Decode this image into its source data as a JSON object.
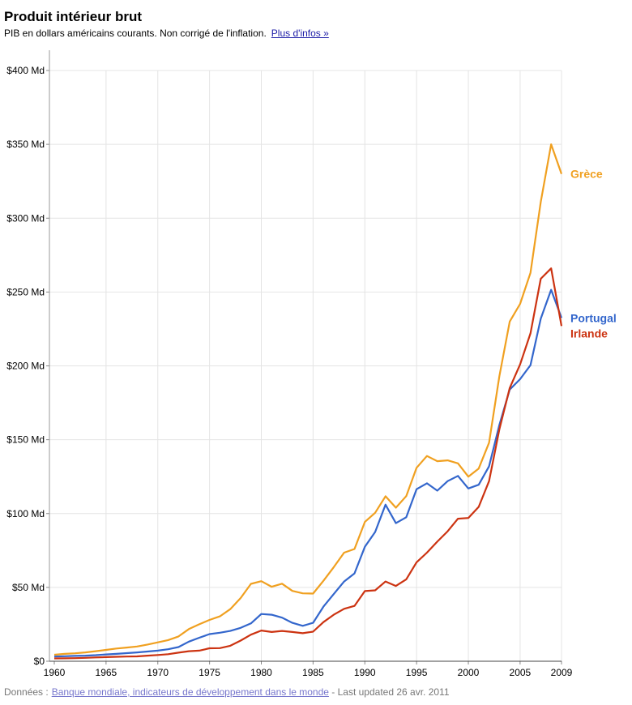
{
  "header": {
    "title": "Produit intérieur brut",
    "subtitle": "PIB en dollars américains courants. Non corrigé de l'inflation.",
    "more_info_link": "Plus d'infos »"
  },
  "footer": {
    "prefix": "Données :",
    "source_link": "Banque mondiale, indicateurs de développement dans le monde",
    "updated": "- Last updated 26 avr. 2011"
  },
  "chart_data": {
    "type": "line",
    "title": "Produit intérieur brut",
    "xlabel": "",
    "ylabel": "",
    "xlim": [
      1960,
      2009
    ],
    "ylim": [
      0,
      400
    ],
    "grid": true,
    "x_ticks": [
      1960,
      1965,
      1970,
      1975,
      1980,
      1985,
      1990,
      1995,
      2000,
      2005,
      2009
    ],
    "x_tick_labels": [
      "1960",
      "1965",
      "1970",
      "1975",
      "1980",
      "1985",
      "1990",
      "1995",
      "2000",
      "2005",
      "2009"
    ],
    "y_ticks": [
      0,
      50,
      100,
      150,
      200,
      250,
      300,
      350,
      400
    ],
    "y_tick_labels": [
      "$0",
      "$50 Md",
      "$100 Md",
      "$150 Md",
      "$200 Md",
      "$250 Md",
      "$300 Md",
      "$350 Md",
      "$400 Md"
    ],
    "x": [
      1960,
      1961,
      1962,
      1963,
      1964,
      1965,
      1966,
      1967,
      1968,
      1969,
      1970,
      1971,
      1972,
      1973,
      1974,
      1975,
      1976,
      1977,
      1978,
      1979,
      1980,
      1981,
      1982,
      1983,
      1984,
      1985,
      1986,
      1987,
      1988,
      1989,
      1990,
      1991,
      1992,
      1993,
      1994,
      1995,
      1996,
      1997,
      1998,
      1999,
      2000,
      2001,
      2002,
      2003,
      2004,
      2005,
      2006,
      2007,
      2008,
      2009
    ],
    "series": [
      {
        "name": "Grèce",
        "label": "Grèce",
        "color": "#f0a020",
        "values": [
          4.4,
          5.0,
          5.4,
          6.0,
          6.8,
          7.7,
          8.6,
          9.3,
          10.0,
          11.3,
          12.8,
          14.3,
          16.8,
          21.8,
          25.0,
          28.0,
          30.4,
          35.3,
          42.8,
          52.4,
          54.2,
          50.4,
          52.5,
          47.6,
          46.0,
          45.8,
          54.5,
          63.7,
          73.5,
          76.0,
          94.3,
          100.5,
          111.7,
          104.0,
          111.8,
          131.0,
          139.0,
          135.5,
          136.0,
          134.0,
          125.0,
          130.5,
          148.0,
          193.0,
          230.0,
          242.0,
          263.0,
          311.0,
          350.0,
          330.0
        ]
      },
      {
        "name": "Portugal",
        "label": "Portugal",
        "color": "#3366cc",
        "values": [
          3.2,
          3.4,
          3.6,
          3.8,
          4.1,
          4.6,
          5.0,
          5.5,
          6.0,
          6.6,
          7.2,
          8.1,
          9.6,
          13.3,
          15.9,
          18.4,
          19.3,
          20.5,
          22.6,
          25.6,
          32.0,
          31.5,
          29.5,
          26.0,
          24.0,
          26.0,
          37.0,
          45.5,
          54.0,
          59.5,
          77.5,
          87.5,
          106.0,
          93.5,
          97.5,
          116.5,
          120.5,
          115.5,
          122.0,
          125.5,
          117.0,
          119.5,
          132.0,
          160.0,
          184.0,
          191.0,
          200.5,
          232.0,
          251.5,
          232.5
        ]
      },
      {
        "name": "Irlande",
        "label": "Irlande",
        "color": "#cc3311",
        "values": [
          1.9,
          2.0,
          2.1,
          2.3,
          2.6,
          2.8,
          3.0,
          3.2,
          3.3,
          3.8,
          4.2,
          4.8,
          5.8,
          6.8,
          7.2,
          8.8,
          8.9,
          10.5,
          14.0,
          18.0,
          20.8,
          19.8,
          20.5,
          19.8,
          19.0,
          20.0,
          26.5,
          31.5,
          35.5,
          37.5,
          47.5,
          48.0,
          54.0,
          51.0,
          55.5,
          67.0,
          73.5,
          81.0,
          88.0,
          96.5,
          97.0,
          104.5,
          122.0,
          157.0,
          185.0,
          201.0,
          222.0,
          259.0,
          266.0,
          227.0
        ]
      }
    ],
    "end_labels": [
      "Grèce",
      "Portugal",
      "Irlande"
    ]
  }
}
